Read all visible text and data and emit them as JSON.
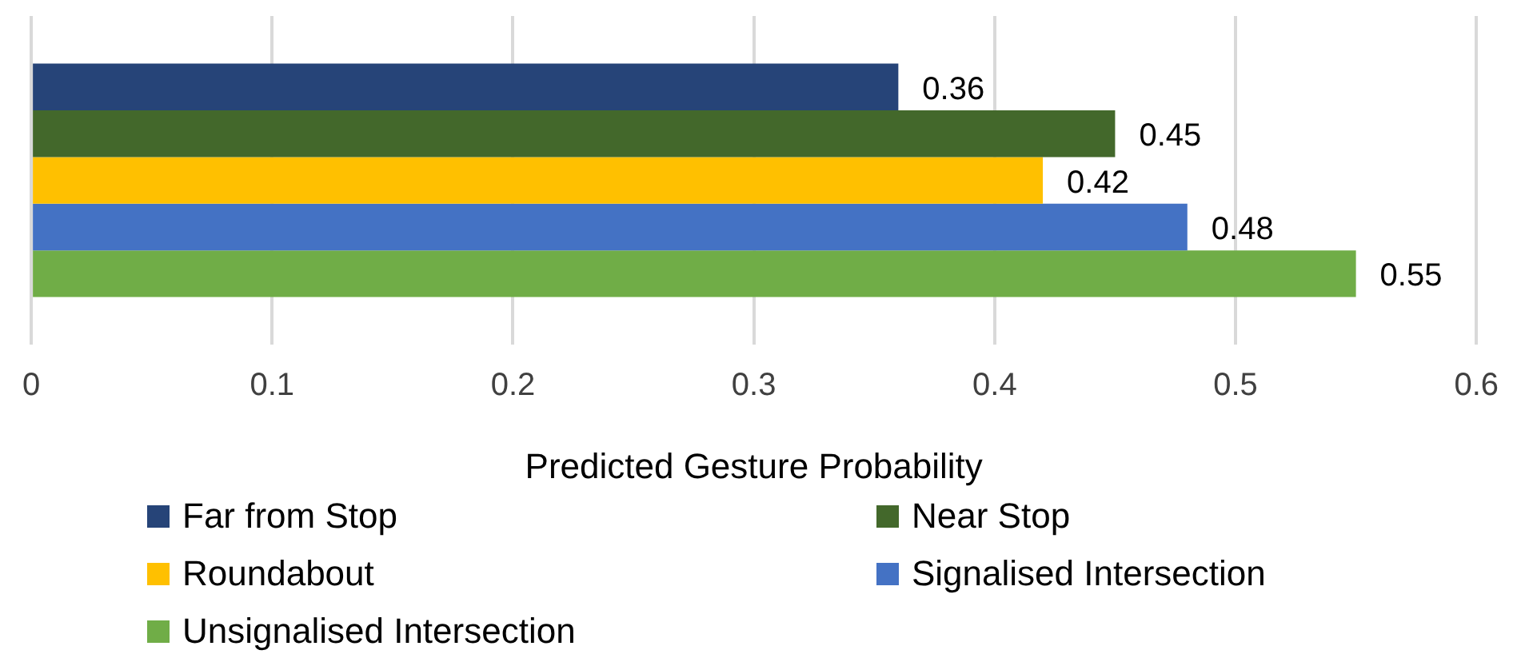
{
  "chart_data": {
    "type": "bar",
    "orientation": "horizontal",
    "xlabel": "Predicted Gesture Probability",
    "categories": [
      null
    ],
    "series": [
      {
        "name": "Far from Stop",
        "color": "#264478",
        "values": [
          0.36
        ]
      },
      {
        "name": "Near Stop",
        "color": "#43682b",
        "values": [
          0.45
        ]
      },
      {
        "name": "Roundabout",
        "color": "#ffc000",
        "values": [
          0.42
        ]
      },
      {
        "name": "Signalised Intersection",
        "color": "#4472c4",
        "values": [
          0.48
        ]
      },
      {
        "name": "Unsignalised Intersection",
        "color": "#70ad47",
        "values": [
          0.55
        ]
      }
    ],
    "xlim": [
      0,
      0.6
    ],
    "xticks": [
      0,
      0.1,
      0.2,
      0.3,
      0.4,
      0.5,
      0.6
    ],
    "grid": "x",
    "data_labels": true,
    "legend": "bottom"
  }
}
